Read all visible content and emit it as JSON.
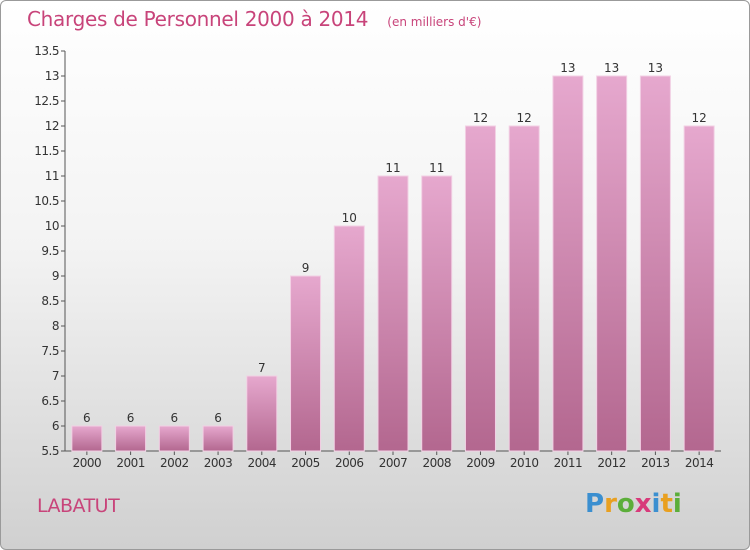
{
  "chart_data": {
    "type": "bar",
    "title": "Charges de Personnel 2000 à 2014",
    "subtitle": "(en milliers d'€)",
    "categories": [
      "2000",
      "2001",
      "2002",
      "2003",
      "2004",
      "2005",
      "2006",
      "2007",
      "2008",
      "2009",
      "2010",
      "2011",
      "2012",
      "2013",
      "2014"
    ],
    "values": [
      6,
      6,
      6,
      6,
      7,
      9,
      10,
      11,
      11,
      12,
      12,
      13,
      13,
      13,
      12
    ],
    "ylim": [
      5.5,
      13.5
    ],
    "yticks": [
      "5.5",
      "6",
      "6.5",
      "7",
      "7.5",
      "8",
      "8.5",
      "9",
      "9.5",
      "10",
      "10.5",
      "11",
      "11.5",
      "12",
      "12.5",
      "13",
      "13.5"
    ],
    "grid": false,
    "bar_color_top": "#e6a8ce",
    "bar_color_bottom": "#b3678f"
  },
  "footer": {
    "commune": "LABATUT",
    "logo": "Proxiti"
  }
}
